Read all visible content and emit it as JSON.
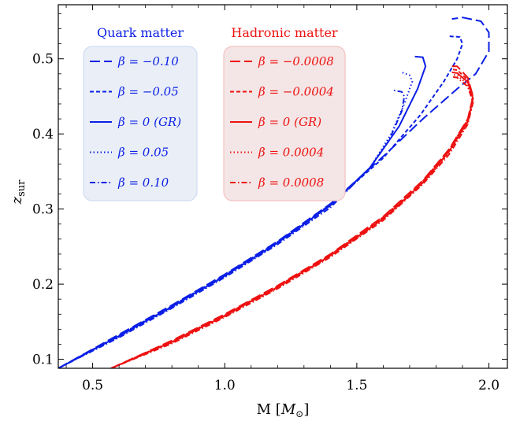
{
  "chart_data": {
    "type": "line",
    "xlabel": "M [M⊙]",
    "ylabel": "z_sur",
    "xlim": [
      0.37,
      2.07
    ],
    "ylim": [
      0.088,
      0.572
    ],
    "x_ticks": [
      0.5,
      1.0,
      1.5,
      2.0
    ],
    "x_tick_labels": [
      "0.5",
      "1.0",
      "1.5",
      "2.0"
    ],
    "y_ticks": [
      0.1,
      0.2,
      0.3,
      0.4,
      0.5
    ],
    "y_tick_labels": [
      "0.1",
      "0.2",
      "0.3",
      "0.4",
      "0.5"
    ],
    "grid": false,
    "colors": {
      "quark": "#0b1fe6",
      "hadronic": "#ee1111"
    },
    "groups": [
      {
        "title": "Quark matter",
        "color": "#0b1fe6",
        "legend_position": "upper-left",
        "series": [
          {
            "name": "β = −0.10",
            "dash": "long-dash",
            "points": [
              [
                0.37,
                0.088
              ],
              [
                0.6,
                0.133
              ],
              [
                0.8,
                0.172
              ],
              [
                1.0,
                0.213
              ],
              [
                1.2,
                0.257
              ],
              [
                1.4,
                0.307
              ],
              [
                1.6,
                0.37
              ],
              [
                1.75,
                0.42
              ],
              [
                1.88,
                0.46
              ],
              [
                1.95,
                0.48
              ],
              [
                2.0,
                0.51
              ],
              [
                2.0,
                0.535
              ],
              [
                1.97,
                0.55
              ],
              [
                1.9,
                0.555
              ],
              [
                1.86,
                0.553
              ]
            ]
          },
          {
            "name": "β = −0.05",
            "dash": "short-dash",
            "points": [
              [
                0.37,
                0.088
              ],
              [
                0.6,
                0.132
              ],
              [
                0.8,
                0.171
              ],
              [
                1.0,
                0.212
              ],
              [
                1.2,
                0.256
              ],
              [
                1.4,
                0.306
              ],
              [
                1.6,
                0.368
              ],
              [
                1.74,
                0.425
              ],
              [
                1.83,
                0.47
              ],
              [
                1.88,
                0.5
              ],
              [
                1.9,
                0.52
              ],
              [
                1.89,
                0.529
              ],
              [
                1.85,
                0.53
              ]
            ]
          },
          {
            "name": "β = 0 (GR)",
            "dash": "solid",
            "points": [
              [
                0.37,
                0.088
              ],
              [
                0.6,
                0.131
              ],
              [
                0.8,
                0.17
              ],
              [
                1.0,
                0.211
              ],
              [
                1.2,
                0.255
              ],
              [
                1.4,
                0.305
              ],
              [
                1.55,
                0.355
              ],
              [
                1.66,
                0.41
              ],
              [
                1.73,
                0.46
              ],
              [
                1.76,
                0.49
              ],
              [
                1.75,
                0.502
              ],
              [
                1.72,
                0.503
              ]
            ]
          },
          {
            "name": "β = 0.05",
            "dash": "dotted",
            "points": [
              [
                0.37,
                0.088
              ],
              [
                0.6,
                0.13
              ],
              [
                0.8,
                0.169
              ],
              [
                1.0,
                0.21
              ],
              [
                1.2,
                0.254
              ],
              [
                1.4,
                0.304
              ],
              [
                1.55,
                0.355
              ],
              [
                1.63,
                0.4
              ],
              [
                1.68,
                0.44
              ],
              [
                1.71,
                0.47
              ],
              [
                1.7,
                0.478
              ],
              [
                1.67,
                0.482
              ]
            ]
          },
          {
            "name": "β = 0.10",
            "dash": "dash-dot",
            "points": [
              [
                0.37,
                0.088
              ],
              [
                0.6,
                0.129
              ],
              [
                0.8,
                0.168
              ],
              [
                1.0,
                0.209
              ],
              [
                1.2,
                0.253
              ],
              [
                1.4,
                0.302
              ],
              [
                1.55,
                0.355
              ],
              [
                1.62,
                0.39
              ],
              [
                1.67,
                0.43
              ],
              [
                1.68,
                0.45
              ],
              [
                1.67,
                0.456
              ],
              [
                1.64,
                0.458
              ]
            ]
          }
        ]
      },
      {
        "title": "Hadronic matter",
        "color": "#ee1111",
        "legend_position": "upper-center",
        "series": [
          {
            "name": "β = −0.0008",
            "dash": "long-dash",
            "points": [
              [
                0.57,
                0.088
              ],
              [
                0.8,
                0.125
              ],
              [
                1.0,
                0.16
              ],
              [
                1.2,
                0.198
              ],
              [
                1.4,
                0.24
              ],
              [
                1.6,
                0.29
              ],
              [
                1.75,
                0.338
              ],
              [
                1.85,
                0.38
              ],
              [
                1.92,
                0.42
              ],
              [
                1.94,
                0.45
              ],
              [
                1.92,
                0.475
              ],
              [
                1.88,
                0.49
              ],
              [
                1.86,
                0.49
              ]
            ]
          },
          {
            "name": "β = −0.0004",
            "dash": "short-dash",
            "points": [
              [
                0.57,
                0.088
              ],
              [
                0.8,
                0.124
              ],
              [
                1.0,
                0.159
              ],
              [
                1.2,
                0.197
              ],
              [
                1.4,
                0.239
              ],
              [
                1.6,
                0.289
              ],
              [
                1.75,
                0.337
              ],
              [
                1.85,
                0.379
              ],
              [
                1.92,
                0.419
              ],
              [
                1.94,
                0.449
              ],
              [
                1.92,
                0.472
              ],
              [
                1.88,
                0.485
              ],
              [
                1.86,
                0.486
              ]
            ]
          },
          {
            "name": "β = 0 (GR)",
            "dash": "solid",
            "points": [
              [
                0.57,
                0.088
              ],
              [
                0.8,
                0.123
              ],
              [
                1.0,
                0.158
              ],
              [
                1.2,
                0.196
              ],
              [
                1.4,
                0.238
              ],
              [
                1.6,
                0.287
              ],
              [
                1.75,
                0.335
              ],
              [
                1.85,
                0.377
              ],
              [
                1.92,
                0.417
              ],
              [
                1.94,
                0.447
              ],
              [
                1.92,
                0.469
              ],
              [
                1.88,
                0.481
              ],
              [
                1.86,
                0.482
              ]
            ]
          },
          {
            "name": "β = 0.0004",
            "dash": "dotted",
            "points": [
              [
                0.57,
                0.088
              ],
              [
                0.8,
                0.122
              ],
              [
                1.0,
                0.157
              ],
              [
                1.2,
                0.195
              ],
              [
                1.4,
                0.237
              ],
              [
                1.6,
                0.286
              ],
              [
                1.75,
                0.334
              ],
              [
                1.85,
                0.375
              ],
              [
                1.92,
                0.415
              ],
              [
                1.94,
                0.444
              ],
              [
                1.92,
                0.466
              ],
              [
                1.88,
                0.478
              ],
              [
                1.86,
                0.479
              ]
            ]
          },
          {
            "name": "β = 0.0008",
            "dash": "dash-dot",
            "points": [
              [
                0.57,
                0.088
              ],
              [
                0.8,
                0.121
              ],
              [
                1.0,
                0.156
              ],
              [
                1.2,
                0.194
              ],
              [
                1.4,
                0.236
              ],
              [
                1.6,
                0.285
              ],
              [
                1.75,
                0.333
              ],
              [
                1.85,
                0.373
              ],
              [
                1.92,
                0.413
              ],
              [
                1.94,
                0.442
              ],
              [
                1.92,
                0.463
              ],
              [
                1.88,
                0.475
              ],
              [
                1.86,
                0.476
              ]
            ]
          }
        ]
      }
    ]
  }
}
